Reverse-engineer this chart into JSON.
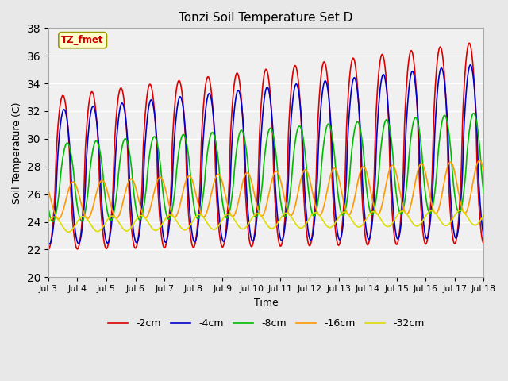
{
  "title": "Tonzi Soil Temperature Set D",
  "xlabel": "Time",
  "ylabel": "Soil Temperature (C)",
  "annotation": "TZ_fmet",
  "annotation_color": "#cc0000",
  "annotation_bg": "#ffffcc",
  "annotation_border": "#999900",
  "xlim": [
    3.0,
    18.0
  ],
  "ylim": [
    20,
    38
  ],
  "yticks": [
    20,
    22,
    24,
    26,
    28,
    30,
    32,
    34,
    36,
    38
  ],
  "xtick_labels": [
    "Jul 3",
    "Jul 4",
    "Jul 5",
    "Jul 6",
    "Jul 7",
    "Jul 8",
    "Jul 9",
    "Jul 10",
    "Jul 11",
    "Jul 12",
    "Jul 13",
    "Jul 14",
    "Jul 15",
    "Jul 16",
    "Jul 17",
    "Jul 18"
  ],
  "xtick_positions": [
    3,
    4,
    5,
    6,
    7,
    8,
    9,
    10,
    11,
    12,
    13,
    14,
    15,
    16,
    17,
    18
  ],
  "bg_color": "#e8e8e8",
  "plot_bg": "#f0f0f0",
  "grid_color": "#ffffff",
  "series": [
    {
      "label": "-2cm",
      "color": "#dd0000",
      "lw": 1.2
    },
    {
      "label": "-4cm",
      "color": "#0000cc",
      "lw": 1.2
    },
    {
      "label": "-8cm",
      "color": "#00bb00",
      "lw": 1.2
    },
    {
      "label": "-16cm",
      "color": "#ff9900",
      "lw": 1.2
    },
    {
      "label": "-32cm",
      "color": "#dddd00",
      "lw": 1.2
    }
  ]
}
